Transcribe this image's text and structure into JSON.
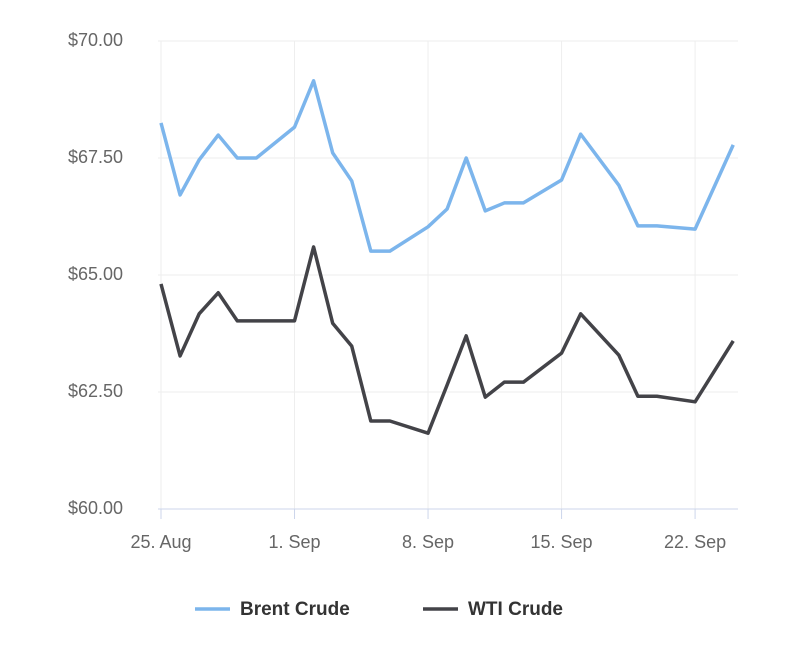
{
  "chart_data": {
    "type": "line",
    "x": [
      0,
      1,
      2,
      3,
      4,
      5,
      7,
      8,
      9,
      10,
      11,
      12,
      14,
      15,
      16,
      17,
      18,
      19,
      21,
      22,
      24,
      25,
      26,
      28,
      30
    ],
    "xlim": [
      0,
      30.25
    ],
    "xticks": [
      {
        "value": 0,
        "label": "25. Aug"
      },
      {
        "value": 7,
        "label": "1. Sep"
      },
      {
        "value": 14,
        "label": "8. Sep"
      },
      {
        "value": 21,
        "label": "15. Sep"
      },
      {
        "value": 28,
        "label": "22. Sep"
      }
    ],
    "ylim": [
      60,
      70
    ],
    "yticks": [
      {
        "value": 60,
        "label": "$60.00"
      },
      {
        "value": 62.5,
        "label": "$62.50"
      },
      {
        "value": 65,
        "label": "$65.00"
      },
      {
        "value": 67.5,
        "label": "$67.50"
      },
      {
        "value": 70,
        "label": "$70.00"
      }
    ],
    "grid": true,
    "legend": "bottom",
    "series": [
      {
        "name": "Brent Crude",
        "color": "#7cb5ec",
        "values": [
          68.25,
          66.71,
          67.46,
          67.99,
          67.5,
          67.5,
          68.16,
          69.15,
          67.61,
          67.01,
          65.51,
          65.51,
          66.03,
          66.41,
          67.5,
          66.37,
          66.54,
          66.54,
          67.03,
          68.01,
          66.92,
          66.05,
          66.05,
          65.98,
          67.78
        ]
      },
      {
        "name": "WTI Crude",
        "color": "#434348",
        "values": [
          64.81,
          63.27,
          64.17,
          64.62,
          64.02,
          64.02,
          64.02,
          65.6,
          63.97,
          63.48,
          61.88,
          61.88,
          61.62,
          62.65,
          63.7,
          62.39,
          62.71,
          62.71,
          63.33,
          64.17,
          63.29,
          62.41,
          62.41,
          62.29,
          63.59
        ]
      }
    ]
  }
}
